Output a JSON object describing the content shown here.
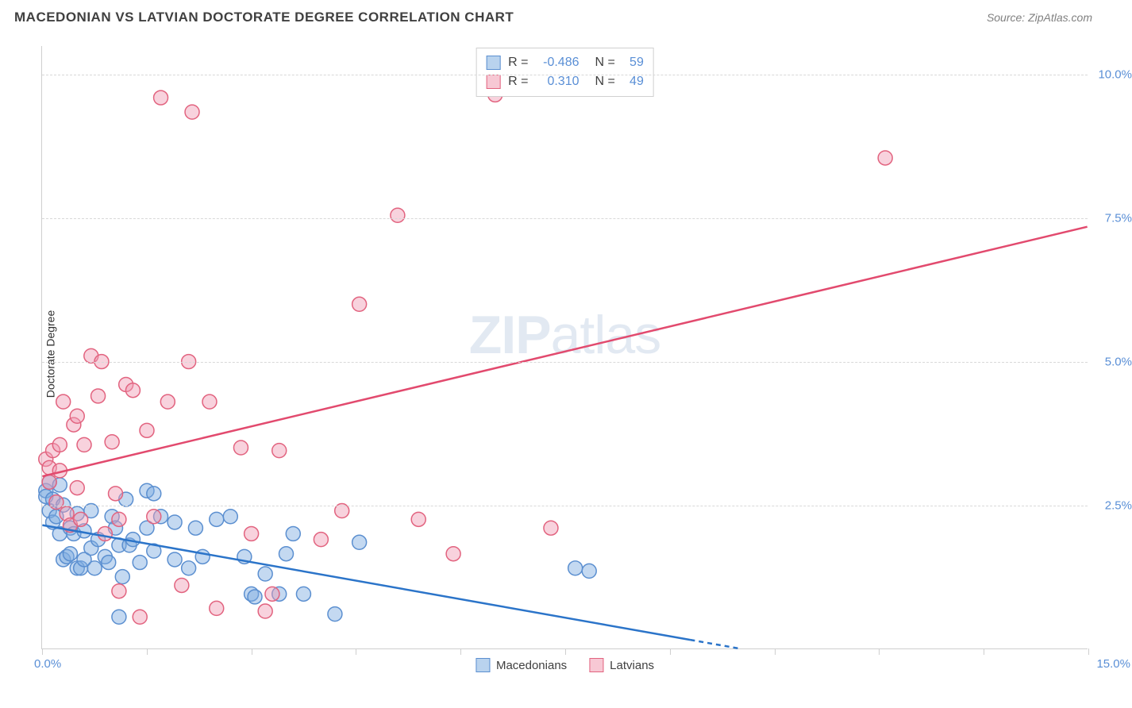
{
  "title": "MACEDONIAN VS LATVIAN DOCTORATE DEGREE CORRELATION CHART",
  "source": "Source: ZipAtlas.com",
  "watermark_zip": "ZIP",
  "watermark_atlas": "atlas",
  "chart": {
    "type": "scatter",
    "ylabel": "Doctorate Degree",
    "xlim": [
      0,
      15
    ],
    "ylim": [
      0,
      10.5
    ],
    "xaxis_min_label": "0.0%",
    "xaxis_max_label": "15.0%",
    "xtick_positions": [
      0,
      1.5,
      3,
      4.5,
      6,
      7.5,
      9,
      10.5,
      12,
      13.5,
      15
    ],
    "ytick_values": [
      2.5,
      5.0,
      7.5,
      10.0
    ],
    "ytick_labels": [
      "2.5%",
      "5.0%",
      "7.5%",
      "10.0%"
    ],
    "grid_color": "#d8d8d8",
    "background_color": "#ffffff",
    "marker_radius": 9,
    "marker_stroke_width": 1.5,
    "trend_line_width": 2.5,
    "series": [
      {
        "name": "Macedonians",
        "fill": "rgba(125, 170, 225, 0.45)",
        "stroke": "#5b8fd0",
        "swatch_fill": "#b9d3ee",
        "swatch_stroke": "#5b8fd0",
        "R": "-0.486",
        "N": "59",
        "trend": {
          "x1": 0,
          "y1": 2.15,
          "x2": 10.0,
          "y2": 0.0,
          "color": "#2b74c9",
          "dash_after_x": 9.3
        },
        "points": [
          [
            0.05,
            2.75
          ],
          [
            0.05,
            2.65
          ],
          [
            0.1,
            2.9
          ],
          [
            0.1,
            2.4
          ],
          [
            0.15,
            2.2
          ],
          [
            0.15,
            2.6
          ],
          [
            0.2,
            2.3
          ],
          [
            0.25,
            2.0
          ],
          [
            0.25,
            2.85
          ],
          [
            0.3,
            1.55
          ],
          [
            0.3,
            2.5
          ],
          [
            0.35,
            1.6
          ],
          [
            0.4,
            2.1
          ],
          [
            0.4,
            1.65
          ],
          [
            0.45,
            2.0
          ],
          [
            0.5,
            1.4
          ],
          [
            0.5,
            2.35
          ],
          [
            0.55,
            1.4
          ],
          [
            0.6,
            1.55
          ],
          [
            0.6,
            2.05
          ],
          [
            0.7,
            1.75
          ],
          [
            0.7,
            2.4
          ],
          [
            0.75,
            1.4
          ],
          [
            0.8,
            1.9
          ],
          [
            0.9,
            1.6
          ],
          [
            0.95,
            1.5
          ],
          [
            1.0,
            2.3
          ],
          [
            1.05,
            2.1
          ],
          [
            1.1,
            1.8
          ],
          [
            1.1,
            0.55
          ],
          [
            1.15,
            1.25
          ],
          [
            1.2,
            2.6
          ],
          [
            1.25,
            1.8
          ],
          [
            1.3,
            1.9
          ],
          [
            1.4,
            1.5
          ],
          [
            1.5,
            2.1
          ],
          [
            1.5,
            2.75
          ],
          [
            1.6,
            1.7
          ],
          [
            1.6,
            2.7
          ],
          [
            1.7,
            2.3
          ],
          [
            1.9,
            2.2
          ],
          [
            1.9,
            1.55
          ],
          [
            2.1,
            1.4
          ],
          [
            2.2,
            2.1
          ],
          [
            2.3,
            1.6
          ],
          [
            2.5,
            2.25
          ],
          [
            2.7,
            2.3
          ],
          [
            2.9,
            1.6
          ],
          [
            3.0,
            0.95
          ],
          [
            3.05,
            0.9
          ],
          [
            3.2,
            1.3
          ],
          [
            3.4,
            0.95
          ],
          [
            3.5,
            1.65
          ],
          [
            3.6,
            2.0
          ],
          [
            3.75,
            0.95
          ],
          [
            4.2,
            0.6
          ],
          [
            4.55,
            1.85
          ],
          [
            7.65,
            1.4
          ],
          [
            7.85,
            1.35
          ]
        ]
      },
      {
        "name": "Latvians",
        "fill": "rgba(240, 155, 180, 0.45)",
        "stroke": "#e2637f",
        "swatch_fill": "#f7c8d4",
        "swatch_stroke": "#e2637f",
        "R": "0.310",
        "N": "49",
        "trend": {
          "x1": 0,
          "y1": 3.0,
          "x2": 15.0,
          "y2": 7.35,
          "color": "#e24a6e",
          "dash_after_x": null
        },
        "points": [
          [
            0.05,
            3.3
          ],
          [
            0.1,
            3.15
          ],
          [
            0.1,
            2.9
          ],
          [
            0.15,
            3.45
          ],
          [
            0.2,
            2.55
          ],
          [
            0.25,
            3.55
          ],
          [
            0.25,
            3.1
          ],
          [
            0.3,
            4.3
          ],
          [
            0.35,
            2.35
          ],
          [
            0.4,
            2.15
          ],
          [
            0.45,
            3.9
          ],
          [
            0.5,
            2.8
          ],
          [
            0.5,
            4.05
          ],
          [
            0.55,
            2.25
          ],
          [
            0.6,
            3.55
          ],
          [
            0.7,
            5.1
          ],
          [
            0.8,
            4.4
          ],
          [
            0.85,
            5.0
          ],
          [
            0.9,
            2.0
          ],
          [
            1.0,
            3.6
          ],
          [
            1.05,
            2.7
          ],
          [
            1.1,
            2.25
          ],
          [
            1.1,
            1.0
          ],
          [
            1.2,
            4.6
          ],
          [
            1.3,
            4.5
          ],
          [
            1.4,
            0.55
          ],
          [
            1.5,
            3.8
          ],
          [
            1.6,
            2.3
          ],
          [
            1.7,
            9.6
          ],
          [
            1.8,
            4.3
          ],
          [
            2.0,
            1.1
          ],
          [
            2.1,
            5.0
          ],
          [
            2.15,
            9.35
          ],
          [
            2.4,
            4.3
          ],
          [
            2.5,
            0.7
          ],
          [
            2.85,
            3.5
          ],
          [
            3.0,
            2.0
          ],
          [
            3.2,
            0.65
          ],
          [
            3.3,
            0.95
          ],
          [
            3.4,
            3.45
          ],
          [
            4.0,
            1.9
          ],
          [
            4.3,
            2.4
          ],
          [
            4.55,
            6.0
          ],
          [
            5.1,
            7.55
          ],
          [
            5.4,
            2.25
          ],
          [
            5.9,
            1.65
          ],
          [
            6.5,
            9.65
          ],
          [
            7.3,
            2.1
          ],
          [
            12.1,
            8.55
          ]
        ]
      }
    ],
    "legend_top_labels": {
      "R": "R =",
      "N": "N ="
    },
    "legend_bottom": [
      "Macedonians",
      "Latvians"
    ]
  }
}
